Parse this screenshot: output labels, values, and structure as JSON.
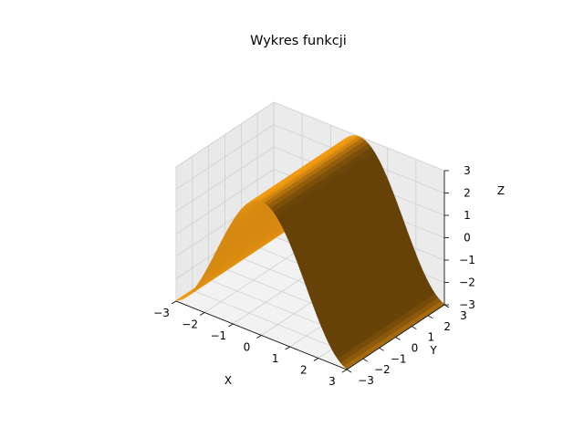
{
  "chart_data": {
    "type": "surface3d",
    "title": "Wykres funkcji",
    "xlabel": "X",
    "ylabel": "Y",
    "zlabel": "Z",
    "xlim": [
      -3,
      3
    ],
    "ylim": [
      -3,
      3
    ],
    "zlim": [
      -3,
      3
    ],
    "x_ticks": [
      "−3",
      "−2",
      "−1",
      "0",
      "1",
      "2",
      "3"
    ],
    "y_ticks": [
      "−3",
      "−2",
      "−1",
      "0",
      "1",
      "2",
      "3"
    ],
    "z_ticks": [
      "−3",
      "−2",
      "−1",
      "0",
      "1",
      "2",
      "3"
    ],
    "grid": true,
    "function": "z = 3·cos(x)",
    "x": [
      -3.0,
      -2.5,
      -2.0,
      -1.5,
      -1.0,
      -0.5,
      0.0,
      0.5,
      1.0,
      1.5,
      2.0,
      2.5,
      3.0
    ],
    "y": [
      -3.0,
      -2.5,
      -2.0,
      -1.5,
      -1.0,
      -0.5,
      0.0,
      0.5,
      1.0,
      1.5,
      2.0,
      2.5,
      3.0
    ],
    "z_by_x": [
      -2.97,
      -2.4,
      -1.25,
      0.21,
      1.62,
      2.63,
      3.0,
      2.63,
      1.62,
      0.21,
      -1.25,
      -2.4,
      -2.97
    ],
    "surface_color": "#f39c12",
    "pane_color": "#f2f2f2",
    "grid_color": "#d0d0d0"
  }
}
